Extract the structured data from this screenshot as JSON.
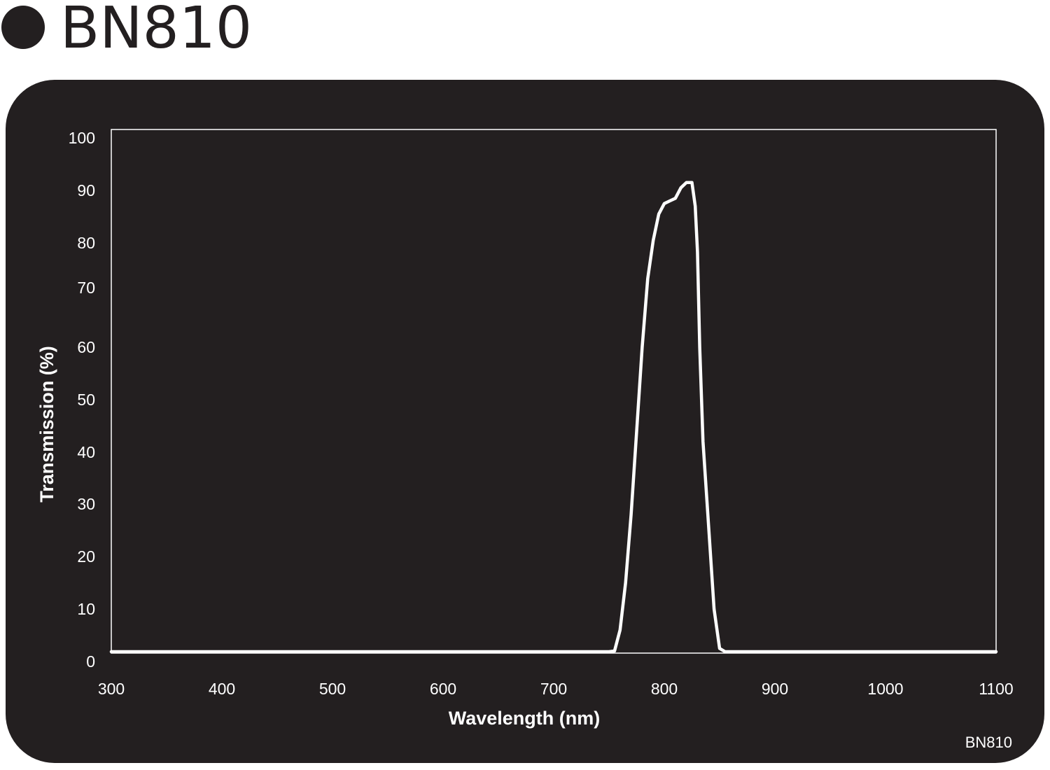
{
  "header": {
    "title": "BN810"
  },
  "colors": {
    "panel": "#231f20",
    "foreground": "#ffffff",
    "title_text": "#231f20"
  },
  "chart_data": {
    "type": "line",
    "title": "",
    "xlabel": "Wavelength (nm)",
    "ylabel": "Transmission (%)",
    "xlim": [
      300,
      1100
    ],
    "ylim": [
      0,
      100
    ],
    "x_ticks": [
      300,
      400,
      500,
      600,
      700,
      800,
      900,
      1000,
      1100
    ],
    "y_ticks": [
      0,
      10,
      20,
      30,
      40,
      50,
      60,
      70,
      80,
      90,
      100
    ],
    "grid": false,
    "legend": "none",
    "footer_label": "BN810",
    "series": [
      {
        "x": [
          300,
          350,
          400,
          420,
          435,
          450,
          500,
          550,
          600,
          630,
          650,
          700,
          750,
          755,
          760,
          765,
          770,
          775,
          780,
          785,
          790,
          795,
          800,
          805,
          810,
          815,
          820,
          825,
          828,
          830,
          832,
          835,
          840,
          845,
          850,
          855,
          860,
          865,
          870,
          880,
          900,
          950,
          1000,
          1010,
          1020,
          1030,
          1040,
          1050,
          1060,
          1080,
          1100
        ],
        "y": [
          0.5,
          0.4,
          0.4,
          0.2,
          0.5,
          0.0,
          0.1,
          0.2,
          0.2,
          0.0,
          0.2,
          0.2,
          0.5,
          2.0,
          6.0,
          15.0,
          28.0,
          44.0,
          60.0,
          72.0,
          80.5,
          85.5,
          87.5,
          88.0,
          88.5,
          90.5,
          91.5,
          91.5,
          87.0,
          78.0,
          60.0,
          42.0,
          26.0,
          10.0,
          2.5,
          1.2,
          0.6,
          0.3,
          0.2,
          0.1,
          0.2,
          0.2,
          0.1,
          0.2,
          0.0,
          0.7,
          0.4,
          0.8,
          0.7,
          0.8,
          0.9
        ]
      }
    ]
  }
}
